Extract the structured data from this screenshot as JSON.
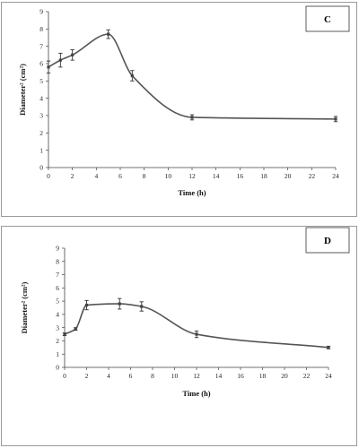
{
  "chart_data": [
    {
      "type": "line",
      "panel_label": "C",
      "xlabel": "Time (h)",
      "ylabel": "Diameter² (cm²)",
      "xlim": [
        0,
        24
      ],
      "ylim": [
        0,
        9
      ],
      "x_ticks": [
        0,
        2,
        4,
        6,
        8,
        10,
        12,
        14,
        16,
        18,
        20,
        22,
        24
      ],
      "y_ticks": [
        0,
        1,
        2,
        3,
        4,
        5,
        6,
        7,
        8,
        9
      ],
      "series": [
        {
          "x": [
            0,
            1,
            2,
            5,
            7,
            12,
            24
          ],
          "y": [
            5.8,
            6.2,
            6.5,
            7.7,
            5.3,
            2.9,
            2.8
          ],
          "err": [
            0.35,
            0.4,
            0.3,
            0.25,
            0.3,
            0.15,
            0.15
          ]
        }
      ],
      "grid": false,
      "line_color": "#555555"
    },
    {
      "type": "line",
      "panel_label": "D",
      "xlabel": "Time (h)",
      "ylabel": "Diameter² (cm²)",
      "xlim": [
        0,
        24
      ],
      "ylim": [
        0,
        9
      ],
      "x_ticks": [
        0,
        2,
        4,
        6,
        8,
        10,
        12,
        14,
        16,
        18,
        20,
        22,
        24
      ],
      "y_ticks": [
        0,
        1,
        2,
        3,
        4,
        5,
        6,
        7,
        8,
        9
      ],
      "series": [
        {
          "x": [
            0,
            1,
            2,
            5,
            7,
            12,
            24
          ],
          "y": [
            2.5,
            2.9,
            4.7,
            4.8,
            4.6,
            2.5,
            1.5
          ],
          "err": [
            0.1,
            0.1,
            0.35,
            0.4,
            0.35,
            0.25,
            0.1
          ]
        }
      ],
      "grid": false,
      "line_color": "#555555"
    }
  ]
}
